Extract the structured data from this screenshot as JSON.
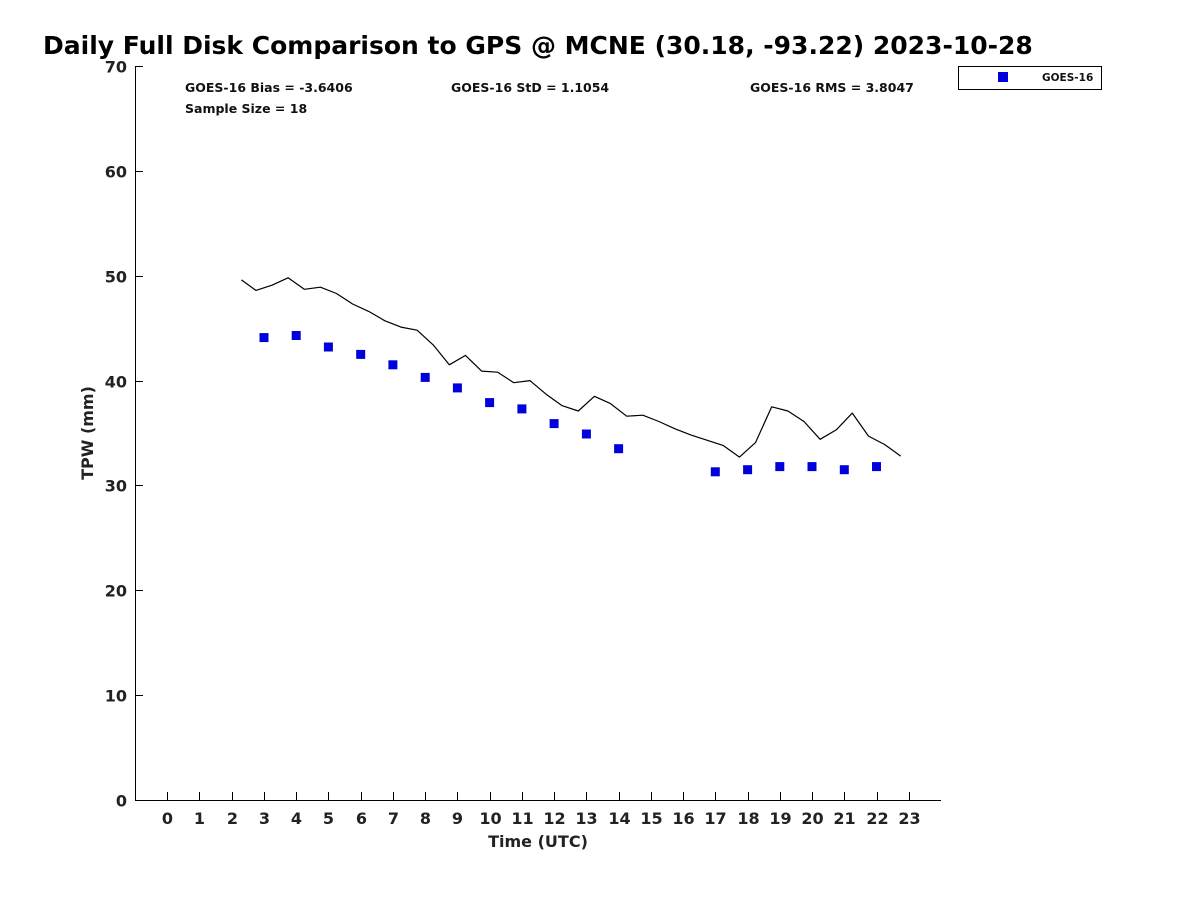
{
  "chart_data": {
    "type": "scatter",
    "title": "Daily Full Disk Comparison to GPS @ MCNE (30.18, -93.22) 2023-10-28",
    "xlabel": "Time (UTC)",
    "ylabel": "TPW (mm)",
    "xlim": [
      -1,
      24
    ],
    "ylim": [
      0,
      70
    ],
    "xticks": [
      0,
      1,
      2,
      3,
      4,
      5,
      6,
      7,
      8,
      9,
      10,
      11,
      12,
      13,
      14,
      15,
      16,
      17,
      18,
      19,
      20,
      21,
      22,
      23
    ],
    "yticks": [
      0,
      10,
      20,
      30,
      40,
      50,
      60,
      70
    ],
    "grid": false,
    "legend_position": "top-right-outside",
    "stats": {
      "bias": "GOES-16 Bias = -3.6406",
      "std": "GOES-16 StD = 1.1054",
      "rms": "GOES-16 RMS = 3.8047",
      "sample_size": "Sample Size = 18"
    },
    "series": [
      {
        "name": "GOES-16",
        "kind": "scatter",
        "marker": "square",
        "color": "#0000dd",
        "x": [
          3,
          4,
          5,
          6,
          7,
          8,
          9,
          10,
          11,
          12,
          13,
          14,
          17,
          18,
          19,
          20,
          21,
          22
        ],
        "y": [
          44.1,
          44.3,
          43.2,
          42.5,
          41.5,
          40.3,
          39.3,
          37.9,
          37.3,
          35.9,
          34.9,
          33.5,
          31.3,
          31.5,
          31.8,
          31.8,
          31.5,
          31.8
        ]
      },
      {
        "kind": "line",
        "color": "#000000",
        "x": [
          2.3,
          2.75,
          3.25,
          3.75,
          4.25,
          4.75,
          5.25,
          5.75,
          6.25,
          6.75,
          7.25,
          7.75,
          8.25,
          8.75,
          9.25,
          9.75,
          10.25,
          10.75,
          11.25,
          11.75,
          12.25,
          12.75,
          13.25,
          13.75,
          14.25,
          14.75,
          15.25,
          15.75,
          16.25,
          16.75,
          17.25,
          17.75,
          18.25,
          18.75,
          19.25,
          19.75,
          20.25,
          20.75,
          21.25,
          21.75,
          22.25,
          22.75
        ],
        "y": [
          49.6,
          48.6,
          49.1,
          49.8,
          48.7,
          48.9,
          48.3,
          47.3,
          46.6,
          45.7,
          45.1,
          44.8,
          43.4,
          41.5,
          42.4,
          40.9,
          40.8,
          39.8,
          40.0,
          38.7,
          37.6,
          37.1,
          38.5,
          37.8,
          36.6,
          36.7,
          36.1,
          35.4,
          34.8,
          34.3,
          33.8,
          32.7,
          34.1,
          37.5,
          37.1,
          36.1,
          34.4,
          35.3,
          36.9,
          34.7,
          33.9,
          32.8
        ]
      }
    ]
  }
}
